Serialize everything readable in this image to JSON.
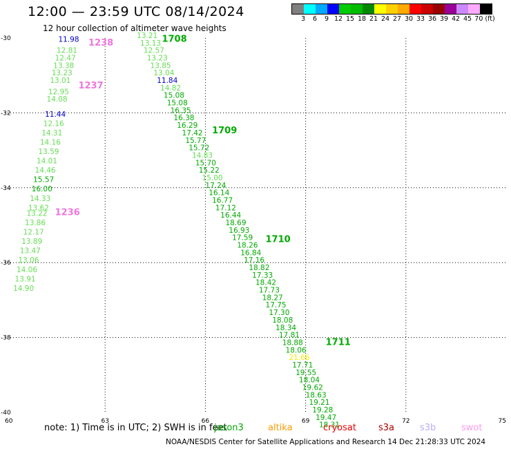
{
  "header": {
    "title": "12:00 — 23:59 UTC 08/14/2024",
    "subtitle": "12 hour collection of altimeter wave heights"
  },
  "legend": {
    "colors": [
      "#808080",
      "#00ffff",
      "#00aaff",
      "#0000ff",
      "#00cc00",
      "#00bb00",
      "#008800",
      "#ffff00",
      "#ffd000",
      "#ffaa00",
      "#ff0000",
      "#cc0000",
      "#990000",
      "#990099",
      "#cc88ff",
      "#ffaaff",
      "#000000"
    ],
    "labels": [
      "3",
      "6",
      "9",
      "12",
      "15",
      "18",
      "21",
      "24",
      "27",
      "30",
      "33",
      "36",
      "39",
      "42",
      "45",
      "70 (ft)"
    ]
  },
  "axes": {
    "x_ticks": [
      "60",
      "63",
      "66",
      "69",
      "72",
      "75"
    ],
    "y_ticks": [
      "-30",
      "-32",
      "-34",
      "-36",
      "-38",
      "-40"
    ]
  },
  "map": {
    "lon_range": [
      60,
      75
    ],
    "lat_range": [
      -40,
      -30
    ],
    "tracks": [
      {
        "label": "1236",
        "label_color": "#ee77dd",
        "label_lon": 61.5,
        "label_lat": -34.73,
        "points": [
          [
            61.6,
            -30.1,
            "11.98",
            "#0000cc"
          ],
          [
            61.55,
            -30.4,
            "12.81",
            "#66dd55"
          ],
          [
            61.5,
            -30.6,
            "12.47",
            "#66dd55"
          ],
          [
            61.45,
            -30.8,
            "13.38",
            "#66dd55"
          ],
          [
            61.4,
            -31.0,
            "13.23",
            "#66dd55"
          ],
          [
            61.35,
            -31.2,
            "13.01",
            "#66dd55"
          ],
          [
            61.3,
            -31.5,
            "12.95",
            "#66dd55"
          ],
          [
            61.25,
            -31.7,
            "14.08",
            "#66dd55"
          ],
          [
            61.2,
            -32.1,
            "11.44",
            "#0000cc"
          ],
          [
            61.15,
            -32.35,
            "12.16",
            "#66dd55"
          ],
          [
            61.1,
            -32.6,
            "14.31",
            "#66dd55"
          ],
          [
            61.05,
            -32.85,
            "14.16",
            "#66dd55"
          ],
          [
            61.0,
            -33.1,
            "13.59",
            "#66dd55"
          ],
          [
            60.95,
            -33.35,
            "14.01",
            "#66dd55"
          ],
          [
            60.9,
            -33.6,
            "14.46",
            "#66dd55"
          ],
          [
            60.85,
            -33.85,
            "15.57",
            "#00aa00"
          ],
          [
            60.8,
            -34.1,
            "16.00",
            "#00aa00"
          ],
          [
            60.75,
            -34.35,
            "14.33",
            "#66dd55"
          ],
          [
            60.7,
            -34.6,
            "13.62",
            "#66dd55"
          ],
          [
            60.65,
            -34.75,
            "13.22",
            "#66dd55"
          ],
          [
            60.6,
            -35.0,
            "13.86",
            "#66dd55"
          ],
          [
            60.55,
            -35.25,
            "12.17",
            "#66dd55"
          ],
          [
            60.5,
            -35.5,
            "13.89",
            "#66dd55"
          ],
          [
            60.45,
            -35.75,
            "13.47",
            "#66dd55"
          ],
          [
            60.4,
            -36.0,
            "13.06",
            "#66dd55"
          ],
          [
            60.35,
            -36.25,
            "14.06",
            "#66dd55"
          ],
          [
            60.3,
            -36.5,
            "13.91",
            "#66dd55"
          ],
          [
            60.25,
            -36.75,
            "14.90",
            "#66dd55"
          ]
        ]
      },
      {
        "label": "1237",
        "label_color": "#ee77dd",
        "label_lon": 62.2,
        "label_lat": -31.35,
        "points": []
      },
      {
        "label": "1238",
        "label_color": "#ee77dd",
        "label_lon": 62.5,
        "label_lat": -30.2,
        "points": []
      },
      {
        "label": "1708",
        "label_color": "#00aa00",
        "label_lon": 64.7,
        "label_lat": -30.1,
        "points": [
          [
            63.95,
            -30.0,
            "13.21",
            "#66dd55"
          ],
          [
            64.05,
            -30.2,
            "13.13",
            "#66dd55"
          ],
          [
            64.15,
            -30.4,
            "12.57",
            "#66dd55"
          ],
          [
            64.25,
            -30.6,
            "13.23",
            "#66dd55"
          ],
          [
            64.35,
            -30.8,
            "13.85",
            "#66dd55"
          ],
          [
            64.45,
            -31.0,
            "13.04",
            "#66dd55"
          ],
          [
            64.55,
            -31.2,
            "11.84",
            "#0000cc"
          ],
          [
            64.65,
            -31.4,
            "14.82",
            "#66dd55"
          ],
          [
            64.75,
            -31.6,
            "15.08",
            "#00aa00"
          ],
          [
            64.85,
            -31.8,
            "15.08",
            "#00aa00"
          ],
          [
            64.95,
            -32.0,
            "16.35",
            "#00aa00"
          ],
          [
            65.05,
            -32.2,
            "16.38",
            "#00aa00"
          ],
          [
            65.15,
            -32.4,
            "16.29",
            "#00aa00"
          ]
        ]
      },
      {
        "label": "1709",
        "label_color": "#00aa00",
        "label_lon": 66.2,
        "label_lat": -32.55,
        "points": [
          [
            65.3,
            -32.6,
            "17.42",
            "#00aa00"
          ],
          [
            65.4,
            -32.8,
            "15.77",
            "#00aa00"
          ],
          [
            65.5,
            -33.0,
            "15.72",
            "#00aa00"
          ],
          [
            65.6,
            -33.2,
            "14.83",
            "#66dd55"
          ],
          [
            65.7,
            -33.4,
            "15.70",
            "#00aa00"
          ],
          [
            65.8,
            -33.6,
            "15.22",
            "#00aa00"
          ],
          [
            65.9,
            -33.8,
            "15.00",
            "#66dd55"
          ],
          [
            66.0,
            -34.0,
            "17.24",
            "#00aa00"
          ],
          [
            66.1,
            -34.2,
            "16.14",
            "#00aa00"
          ]
        ]
      },
      {
        "label": "1710",
        "label_color": "#00aa00",
        "label_lon": 67.8,
        "label_lat": -35.45,
        "points": [
          [
            66.2,
            -34.4,
            "16.77",
            "#00aa00"
          ],
          [
            66.3,
            -34.6,
            "17.12",
            "#00aa00"
          ],
          [
            66.45,
            -34.8,
            "16.44",
            "#00aa00"
          ],
          [
            66.6,
            -35.0,
            "18.69",
            "#00aa00"
          ],
          [
            66.7,
            -35.2,
            "16.93",
            "#00aa00"
          ],
          [
            66.8,
            -35.4,
            "17.59",
            "#00aa00"
          ],
          [
            66.95,
            -35.6,
            "18.26",
            "#00aa00"
          ],
          [
            67.05,
            -35.8,
            "16.84",
            "#00aa00"
          ],
          [
            67.15,
            -36.0,
            "17.16",
            "#00aa00"
          ],
          [
            67.3,
            -36.2,
            "18.82",
            "#00aa00"
          ],
          [
            67.4,
            -36.4,
            "17.33",
            "#00aa00"
          ],
          [
            67.5,
            -36.6,
            "18.42",
            "#00aa00"
          ],
          [
            67.6,
            -36.8,
            "17.73",
            "#00aa00"
          ],
          [
            67.7,
            -37.0,
            "18.27",
            "#00aa00"
          ],
          [
            67.8,
            -37.2,
            "17.75",
            "#00aa00"
          ],
          [
            67.9,
            -37.4,
            "17.30",
            "#00aa00"
          ],
          [
            68.0,
            -37.6,
            "18.08",
            "#00aa00"
          ],
          [
            68.1,
            -37.8,
            "18.34",
            "#00aa00"
          ],
          [
            68.2,
            -38.0,
            "17.81",
            "#00aa00"
          ],
          [
            68.3,
            -38.2,
            "18.88",
            "#00aa00"
          ],
          [
            68.4,
            -38.4,
            "18.06",
            "#00aa00"
          ]
        ]
      },
      {
        "label": "1711",
        "label_color": "#00aa00",
        "label_lon": 69.6,
        "label_lat": -38.2,
        "points": [
          [
            68.5,
            -38.6,
            "21.66",
            "#eeee00"
          ],
          [
            68.6,
            -38.8,
            "17.71",
            "#00aa00"
          ],
          [
            68.7,
            -39.0,
            "19.55",
            "#00aa00"
          ],
          [
            68.8,
            -39.2,
            "18.04",
            "#00aa00"
          ],
          [
            68.9,
            -39.4,
            "19.62",
            "#00aa00"
          ],
          [
            69.0,
            -39.6,
            "18.63",
            "#00aa00"
          ],
          [
            69.1,
            -39.8,
            "19.21",
            "#00aa00"
          ],
          [
            69.2,
            -40.0,
            "19.28",
            "#00aa00"
          ],
          [
            69.3,
            -40.2,
            "19.47",
            "#00aa00"
          ],
          [
            69.4,
            -40.4,
            "18.31",
            "#00aa00"
          ]
        ]
      }
    ]
  },
  "footer": {
    "note": "note:  1) Time is in UTC; 2) SWH is in feet",
    "satellites": [
      {
        "name": "jason3",
        "color": "#00aa00"
      },
      {
        "name": "altika",
        "color": "#ff9900"
      },
      {
        "name": "cryosat",
        "color": "#ee0000"
      },
      {
        "name": "s3a",
        "color": "#aa0000"
      },
      {
        "name": "s3b",
        "color": "#bbaaff"
      },
      {
        "name": "swot",
        "color": "#ff99ee"
      }
    ],
    "credit": "NOAA/NESDIS Center for Satellite Applications and Research     14 Dec 21:28:33 UTC 2024"
  }
}
